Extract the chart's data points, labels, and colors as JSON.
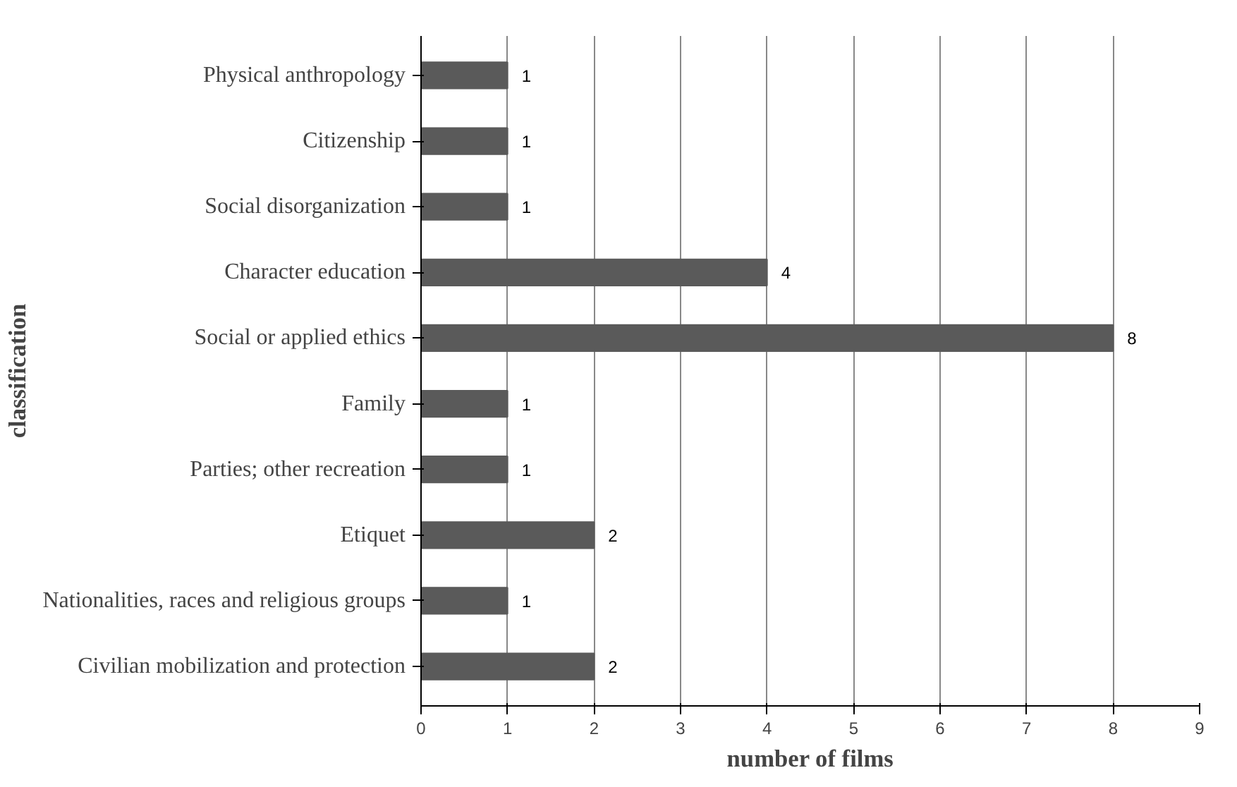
{
  "chart_data": {
    "type": "bar",
    "orientation": "horizontal",
    "xlabel": "number of films",
    "ylabel": "classification",
    "categories": [
      "Physical anthropology",
      "Citizenship",
      "Social disorganization",
      "Character education",
      "Social or applied ethics",
      "Family",
      "Parties; other recreation",
      "Etiquet",
      "Nationalities, races and religious groups",
      "Civilian mobilization and protection"
    ],
    "values": [
      1,
      1,
      1,
      4,
      8,
      1,
      1,
      2,
      1,
      2
    ],
    "color": "#5a5a5a",
    "xlim": [
      0,
      9
    ],
    "xticks": [
      0,
      1,
      2,
      3,
      4,
      5,
      6,
      7,
      8,
      9
    ],
    "grid": "x",
    "data_labels": true
  }
}
